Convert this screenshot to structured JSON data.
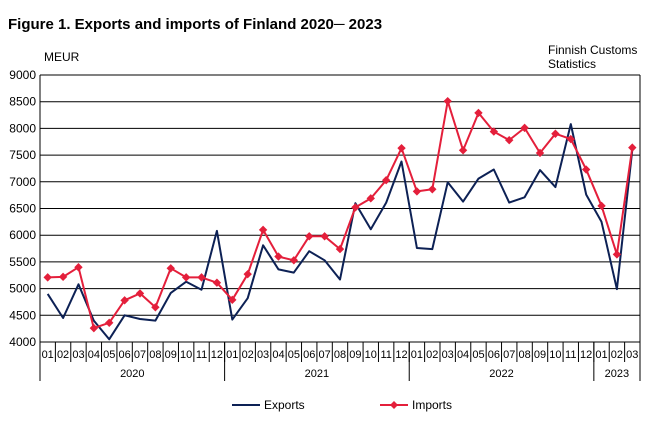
{
  "figure": {
    "title": "Figure 1. Exports and imports of Finland 2020─ 2023",
    "unit": "MEUR",
    "source_line1": "Finnish Customs",
    "source_line2": "Statistics"
  },
  "colors": {
    "exports": "#0d2155",
    "imports": "#e41f3b",
    "grid": "#000000",
    "frame": "#000000"
  },
  "chart_data": {
    "type": "line",
    "ylim": [
      4000,
      9000
    ],
    "yticks": [
      "4000",
      "4500",
      "5000",
      "5500",
      "6000",
      "6500",
      "7000",
      "7500",
      "8000",
      "8500",
      "9000"
    ],
    "categories": [
      "01",
      "02",
      "03",
      "04",
      "05",
      "06",
      "07",
      "08",
      "09",
      "10",
      "11",
      "12",
      "01",
      "02",
      "03",
      "04",
      "05",
      "06",
      "07",
      "08",
      "09",
      "10",
      "11",
      "12",
      "01",
      "02",
      "03",
      "04",
      "05",
      "06",
      "07",
      "08",
      "09",
      "10",
      "11",
      "12",
      "01",
      "02",
      "03"
    ],
    "years": [
      {
        "label": "2020",
        "months": 12
      },
      {
        "label": "2021",
        "months": 12
      },
      {
        "label": "2022",
        "months": 12
      },
      {
        "label": "2023",
        "months": 3
      }
    ],
    "grid": true,
    "legend_position": "bottom",
    "series": [
      {
        "name": "Exports",
        "marker": "none",
        "values": [
          4900,
          4450,
          5080,
          4400,
          4050,
          4500,
          4430,
          4400,
          4920,
          5130,
          4980,
          6080,
          4420,
          4820,
          5810,
          5360,
          5300,
          5700,
          5530,
          5170,
          6600,
          6110,
          6610,
          7380,
          5760,
          5740,
          6990,
          6630,
          7060,
          7230,
          6610,
          6710,
          7220,
          6900,
          8080,
          6760,
          6250,
          4990,
          7600
        ]
      },
      {
        "name": "Imports",
        "marker": "diamond",
        "values": [
          5210,
          5220,
          5400,
          4260,
          4360,
          4780,
          4910,
          4650,
          5380,
          5210,
          5210,
          5110,
          4790,
          5270,
          6100,
          5600,
          5530,
          5980,
          5980,
          5740,
          6520,
          6690,
          7030,
          7630,
          6820,
          6860,
          8510,
          7590,
          8290,
          7940,
          7780,
          8010,
          7540,
          7900,
          7800,
          7230,
          6550,
          5640,
          7640
        ]
      }
    ]
  }
}
